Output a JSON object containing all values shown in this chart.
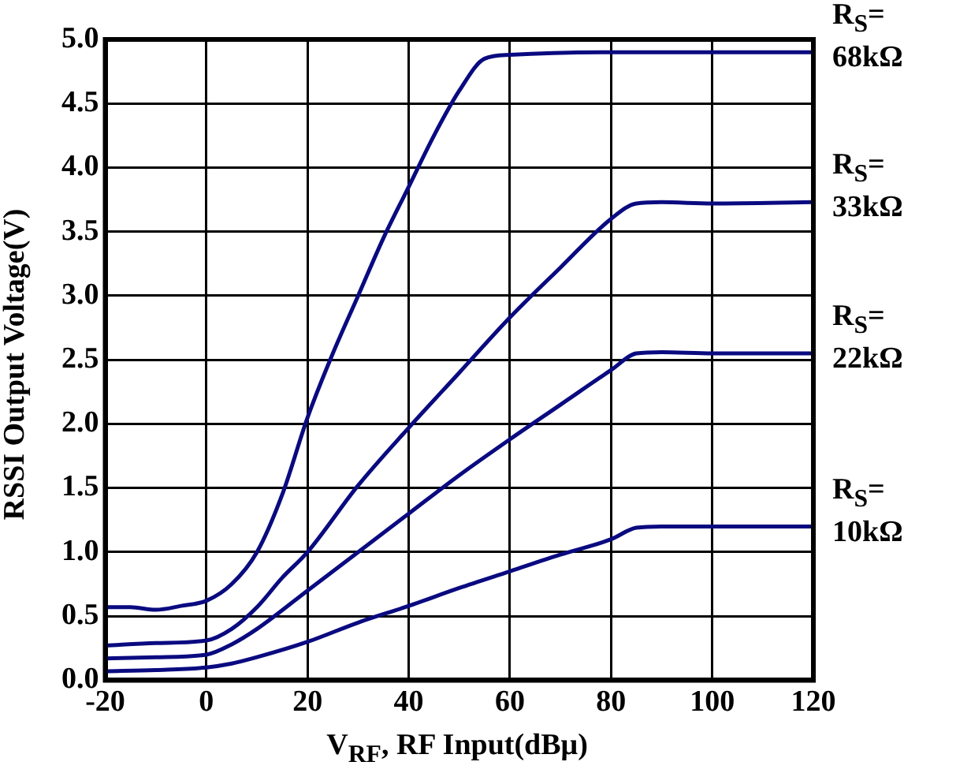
{
  "chart_data": {
    "type": "line",
    "xlabel": "V$_{RF}$, RF Input(dBμ)",
    "ylabel": "RSSI Output Voltage(V)",
    "xlim": [
      -20,
      120
    ],
    "xticks": [
      -20,
      0,
      20,
      40,
      60,
      80,
      100,
      120
    ],
    "ylim": [
      0,
      5
    ],
    "yticks": [
      {
        "value": 0,
        "label": "0.0"
      },
      0.5,
      {
        "value": 1,
        "label": "1.0"
      },
      1.5,
      {
        "value": 2,
        "label": "2.0"
      },
      2.5,
      {
        "value": 3,
        "label": "3.0"
      },
      3.5,
      {
        "value": 4,
        "label": "4.0"
      },
      4.5,
      {
        "value": 5,
        "label": "5.0"
      }
    ],
    "grid": true,
    "legend": false,
    "marker": "none",
    "line_style": "solid",
    "series": [
      {
        "name": "R$_{S}$= 68kΩ",
        "color": "#0a0a80",
        "x": [
          -20,
          -15,
          -10,
          -5,
          0,
          5,
          10,
          15,
          20,
          25,
          30,
          35,
          40,
          45,
          50,
          55,
          60,
          80,
          100,
          120
        ],
        "values": [
          0.57,
          0.57,
          0.55,
          0.58,
          0.62,
          0.75,
          1.0,
          1.45,
          2.05,
          2.55,
          3.0,
          3.45,
          3.85,
          4.25,
          4.6,
          4.85,
          4.88,
          4.9,
          4.9,
          4.9
        ]
      },
      {
        "name": "R$_{S}$= 33kΩ",
        "color": "#0a0a80",
        "x": [
          -20,
          -10,
          0,
          5,
          10,
          15,
          20,
          30,
          40,
          50,
          60,
          70,
          80,
          85,
          90,
          100,
          120
        ],
        "values": [
          0.27,
          0.29,
          0.31,
          0.4,
          0.57,
          0.8,
          1.0,
          1.52,
          1.97,
          2.4,
          2.83,
          3.22,
          3.6,
          3.72,
          3.73,
          3.72,
          3.73
        ]
      },
      {
        "name": "R$_{S}$= 22kΩ",
        "color": "#0a0a80",
        "x": [
          -20,
          -10,
          0,
          5,
          10,
          20,
          30,
          40,
          50,
          60,
          70,
          80,
          85,
          90,
          100,
          120
        ],
        "values": [
          0.17,
          0.18,
          0.2,
          0.28,
          0.4,
          0.7,
          1.0,
          1.3,
          1.6,
          1.88,
          2.15,
          2.42,
          2.55,
          2.56,
          2.55,
          2.55
        ]
      },
      {
        "name": "R$_{S}$= 10kΩ",
        "color": "#0a0a80",
        "x": [
          -20,
          -10,
          0,
          5,
          10,
          20,
          30,
          40,
          50,
          60,
          70,
          80,
          85,
          90,
          100,
          120
        ],
        "values": [
          0.07,
          0.08,
          0.1,
          0.13,
          0.18,
          0.3,
          0.45,
          0.58,
          0.72,
          0.85,
          0.98,
          1.1,
          1.19,
          1.2,
          1.2,
          1.2
        ]
      }
    ]
  }
}
